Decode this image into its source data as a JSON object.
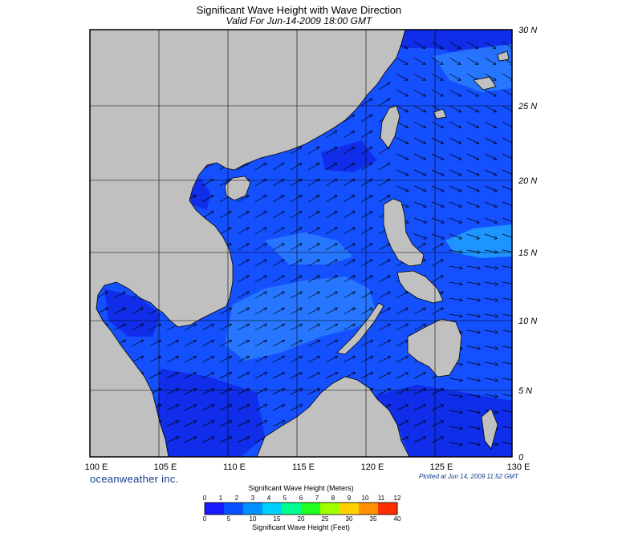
{
  "title": "Significant Wave Height with Wave Direction",
  "subtitle": "Valid For Jun-14-2009 18:00 GMT",
  "brand": "oceanweather inc.",
  "plotted": "Plotted at Jun 14, 2009 11:52 GMT",
  "lon_labels": [
    "100 E",
    "105 E",
    "110 E",
    "115 E",
    "120 E",
    "125 E",
    "130 E"
  ],
  "lat_labels": [
    "30 N",
    "25 N",
    "20 N",
    "15 N",
    "10 N",
    "5 N",
    "0"
  ],
  "colorbar": {
    "title": "Significant Wave Height (Meters)",
    "bottom_title": "Significant Wave Height (Feet)",
    "meters_ticks": [
      "0",
      "1",
      "2",
      "3",
      "4",
      "5",
      "6",
      "7",
      "8",
      "9",
      "10",
      "11",
      "12"
    ],
    "feet_ticks": [
      "0",
      "5",
      "10",
      "15",
      "20",
      "25",
      "30",
      "35",
      "40"
    ],
    "colors": [
      "#1a1aff",
      "#0a50ff",
      "#0090ff",
      "#00d0ff",
      "#00ff90",
      "#20ff20",
      "#a0ff00",
      "#ffd000",
      "#ff9000",
      "#ff3000"
    ]
  },
  "colors": {
    "land": "#c0c0c0",
    "ocean_deep": "#0f28e6",
    "ocean_mid": "#1550ff",
    "ocean_light": "#2a7dff",
    "ocean_cyan": "#1fa0ff",
    "gulf_dark": "#06066e"
  }
}
